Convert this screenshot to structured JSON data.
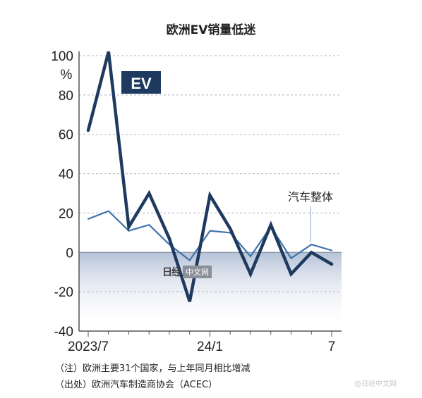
{
  "chart_data": {
    "type": "line",
    "title": "欧洲EV销量低迷",
    "ylabel": "%",
    "ylim": [
      -40,
      100
    ],
    "yticks": [
      100,
      80,
      60,
      40,
      20,
      0,
      -20,
      -40
    ],
    "ytick_labels": [
      "100",
      "80",
      "60",
      "40",
      "20",
      "0",
      "-20",
      "-40"
    ],
    "x": [
      "2023/7",
      "2023/8",
      "2023/9",
      "2023/10",
      "2023/11",
      "2023/12",
      "2024/1",
      "2024/2",
      "2024/3",
      "2024/4",
      "2024/5",
      "2024/6",
      "2024/7"
    ],
    "xtick_labels": [
      {
        "index": 0,
        "label": "2023/7"
      },
      {
        "index": 6,
        "label": "24/1"
      },
      {
        "index": 12,
        "label": "7"
      }
    ],
    "grid": true,
    "series": [
      {
        "name": "EV",
        "color": "#1f3a5f",
        "values": [
          62,
          102,
          13,
          30,
          7,
          -25,
          29,
          12,
          -11,
          14,
          -11,
          0,
          -6
        ]
      },
      {
        "name": "汽车整体",
        "color": "#3f74ad",
        "values": [
          17,
          21,
          11,
          14,
          4,
          -4,
          11,
          10,
          -2,
          13,
          -3,
          4,
          1
        ]
      }
    ],
    "negative_region_fill": "#c5cee0"
  },
  "notes": {
    "note": "（注）欧洲主要31个国家，与上年同月相比增减",
    "source": "（出处）欧洲汽车制造商协会（ACEC）"
  },
  "watermark": {
    "logo": "日经",
    "site": "中文网",
    "corner": "@日经中文网"
  }
}
